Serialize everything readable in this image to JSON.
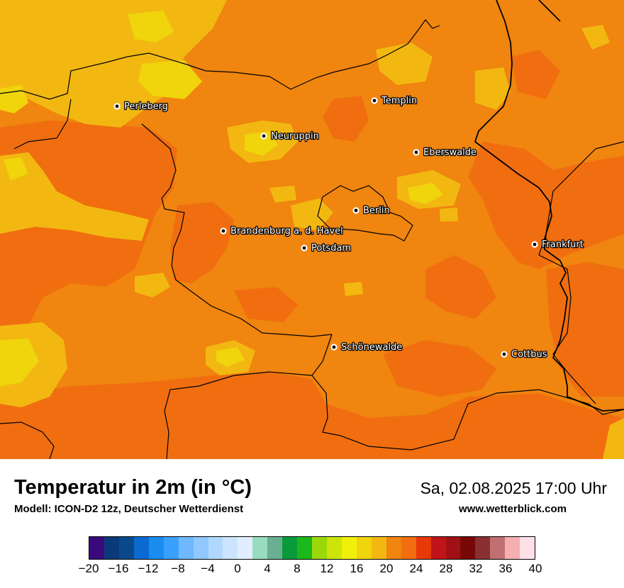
{
  "title": "Temperatur in 2m (in °C)",
  "subtitle": "Modell: ICON-D2 12z, Deutscher Wetterdienst",
  "datetime": "Sa, 02.08.2025 17:00 Uhr",
  "website": "www.wetterblick.com",
  "map": {
    "base_color": "#f0850f",
    "warm_color": "#f06e10",
    "cool_color": "#f2b811",
    "coolest_color": "#f0d40c",
    "cities": [
      {
        "name": "Perleberg",
        "key": "perleberg"
      },
      {
        "name": "Templin",
        "key": "templin"
      },
      {
        "name": "Neuruppin",
        "key": "neuruppin"
      },
      {
        "name": "Eberswalde",
        "key": "eberswalde"
      },
      {
        "name": "Berlin",
        "key": "berlin"
      },
      {
        "name": "Brandenburg a. d. Havel",
        "key": "brandenburg"
      },
      {
        "name": "Potsdam",
        "key": "potsdam"
      },
      {
        "name": "Frankfurt",
        "key": "frankfurt"
      },
      {
        "name": "Schönewalde",
        "key": "schoenewalde"
      },
      {
        "name": "Cottbus",
        "key": "cottbus"
      }
    ]
  },
  "legend": {
    "colors": [
      "#3a0a7c",
      "#0a3a7a",
      "#0a4a8c",
      "#0a6ad0",
      "#1a8cf0",
      "#3aa0ff",
      "#70b8ff",
      "#90c8ff",
      "#b0d8ff",
      "#cce4ff",
      "#e0eeff",
      "#98dcc0",
      "#68b090",
      "#0a9a3a",
      "#1ab81a",
      "#9ad80a",
      "#cce40a",
      "#f0f00a",
      "#f0d40c",
      "#f2b811",
      "#f0850f",
      "#f06e10",
      "#e8380a",
      "#c0141a",
      "#a01014",
      "#780808",
      "#8a3030",
      "#c07070",
      "#f4b0b0",
      "#ffe0e8"
    ],
    "ticks": [
      "−20",
      "−16",
      "−12",
      "−8",
      "−4",
      "0",
      "4",
      "8",
      "12",
      "16",
      "20",
      "24",
      "28",
      "32",
      "36",
      "40"
    ]
  }
}
